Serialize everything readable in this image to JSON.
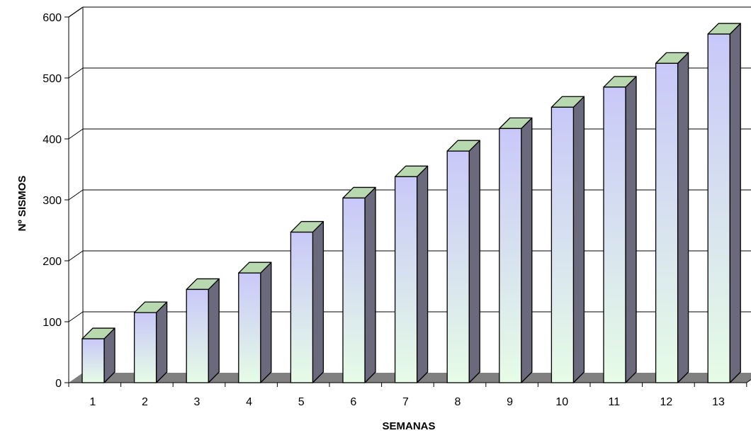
{
  "chart_data": {
    "type": "bar",
    "three_d": true,
    "title": "",
    "xlabel": "SEMANAS",
    "ylabel": "Nº SISMOS",
    "categories": [
      "1",
      "2",
      "3",
      "4",
      "5",
      "6",
      "7",
      "8",
      "9",
      "10",
      "11",
      "12",
      "13"
    ],
    "values": [
      72,
      115,
      153,
      180,
      247,
      303,
      338,
      380,
      417,
      452,
      485,
      524,
      572
    ],
    "ylim": [
      0,
      600
    ],
    "yticks": [
      0,
      100,
      200,
      300,
      400,
      500,
      600
    ],
    "ytick_labels": [
      "0",
      "100",
      "200",
      "300",
      "400",
      "500",
      "600"
    ],
    "grid": true,
    "legend": "none",
    "colors": {
      "bar_front_top": "#c8c8f8",
      "bar_front_bottom": "#e6fce6",
      "bar_side": "#6a6a7c",
      "bar_top": "#b8d8b0",
      "floor": "#808080",
      "wall_edge": "#808080",
      "gridline": "#000000"
    }
  }
}
